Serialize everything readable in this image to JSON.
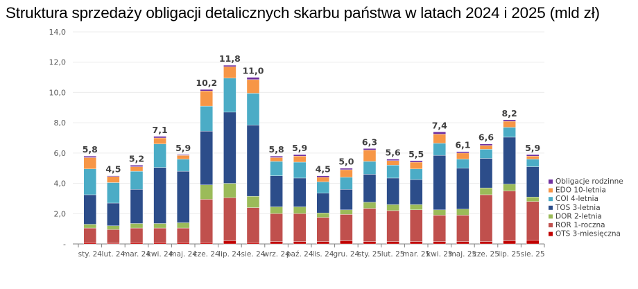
{
  "chart_data": {
    "type": "bar",
    "stacked": true,
    "title": "Struktura sprzedaży obligacji detalicznych skarbu państwa w latach 2024 i 2025 (mld zł)",
    "xlabel": "",
    "ylabel": "",
    "ylim": [
      0,
      14
    ],
    "y_ticks": [
      "-",
      "2,0",
      "4,0",
      "6,0",
      "8,0",
      "10,0",
      "12,0",
      "14,0"
    ],
    "grid": true,
    "legend_position": "right",
    "categories": [
      "sty. 24",
      "lut. 24",
      "mar. 24",
      "kwi. 24",
      "maj. 24",
      "cze. 24",
      "lip. 24",
      "sie. 24",
      "wrz. 24",
      "paź. 24",
      "lis. 24",
      "gru. 24",
      "sty. 25",
      "lut. 25",
      "mar. 25",
      "kwi. 25",
      "maj. 25",
      "cze. 25",
      "lip. 25",
      "sie. 25"
    ],
    "totals": [
      "5,8",
      "4,5",
      "5,2",
      "7,1",
      "5,9",
      "10,2",
      "11,8",
      "11,0",
      "5,8",
      "5,9",
      "4,5",
      "5,0",
      "6,3",
      "5,6",
      "5,5",
      "7,4",
      "6,1",
      "6,6",
      "8,2",
      "5,9"
    ],
    "series": [
      {
        "name": "OTS 3-miesięczna",
        "color": "#c00000",
        "values": [
          0.1,
          0.05,
          0.1,
          0.1,
          0.1,
          0.1,
          0.2,
          0.1,
          0.15,
          0.15,
          0.15,
          0.2,
          0.15,
          0.15,
          0.15,
          0.15,
          0.15,
          0.15,
          0.2,
          0.25
        ]
      },
      {
        "name": "ROR 1-roczna",
        "color": "#c0504d",
        "values": [
          0.95,
          0.9,
          0.95,
          0.95,
          0.95,
          2.85,
          2.85,
          2.3,
          1.85,
          1.85,
          1.6,
          1.75,
          2.2,
          2.05,
          2.1,
          1.75,
          1.75,
          3.1,
          3.3,
          2.55
        ]
      },
      {
        "name": "DOR 2-letnia",
        "color": "#9bbb59",
        "values": [
          0.25,
          0.25,
          0.3,
          0.3,
          0.35,
          0.95,
          0.95,
          0.75,
          0.45,
          0.45,
          0.3,
          0.3,
          0.4,
          0.4,
          0.35,
          0.35,
          0.4,
          0.45,
          0.45,
          0.3
        ]
      },
      {
        "name": "TOS 3-letnia",
        "color": "#2c4d8a",
        "values": [
          1.95,
          1.5,
          2.25,
          3.7,
          3.4,
          3.55,
          4.7,
          4.7,
          2.05,
          1.9,
          1.3,
          1.35,
          1.85,
          1.75,
          1.65,
          3.6,
          2.7,
          1.95,
          3.1,
          2.0
        ]
      },
      {
        "name": "COI 4-letnia",
        "color": "#4bacc6",
        "values": [
          1.7,
          1.35,
          1.2,
          1.55,
          0.8,
          1.65,
          2.25,
          2.1,
          0.95,
          1.05,
          0.75,
          0.8,
          0.85,
          0.85,
          0.7,
          0.8,
          0.6,
          0.6,
          0.65,
          0.5
        ]
      },
      {
        "name": "EDO 10-letnia",
        "color": "#f79646",
        "values": [
          0.75,
          0.4,
          0.3,
          0.4,
          0.25,
          1.0,
          0.75,
          0.9,
          0.25,
          0.4,
          0.3,
          0.5,
          0.75,
          0.3,
          0.45,
          0.6,
          0.4,
          0.25,
          0.4,
          0.2
        ]
      },
      {
        "name": "Obligacje rodzinne",
        "color": "#7030a0",
        "values": [
          0.1,
          0.05,
          0.1,
          0.1,
          0.05,
          0.1,
          0.1,
          0.15,
          0.1,
          0.1,
          0.1,
          0.1,
          0.1,
          0.1,
          0.1,
          0.15,
          0.1,
          0.1,
          0.1,
          0.1
        ]
      }
    ]
  }
}
